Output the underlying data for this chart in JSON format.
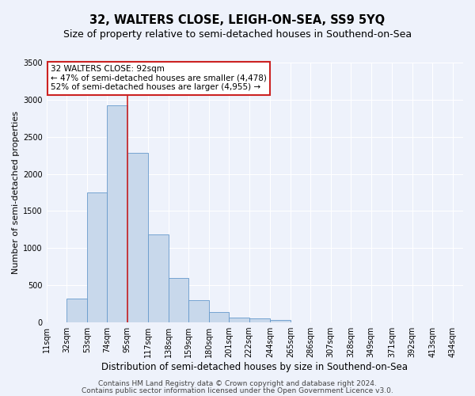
{
  "title": "32, WALTERS CLOSE, LEIGH-ON-SEA, SS9 5YQ",
  "subtitle": "Size of property relative to semi-detached houses in Southend-on-Sea",
  "xlabel": "Distribution of semi-detached houses by size in Southend-on-Sea",
  "ylabel": "Number of semi-detached properties",
  "bar_left_edges": [
    11,
    32,
    53,
    74,
    95,
    117,
    138,
    159,
    180,
    201,
    222,
    244,
    265,
    286,
    307,
    328,
    349,
    371,
    392,
    413
  ],
  "bar_widths": [
    21,
    21,
    21,
    21,
    22,
    21,
    21,
    21,
    21,
    21,
    22,
    21,
    21,
    21,
    21,
    21,
    22,
    21,
    21,
    21
  ],
  "bar_heights": [
    0,
    320,
    1750,
    2920,
    2280,
    1180,
    600,
    300,
    140,
    70,
    55,
    35,
    0,
    0,
    0,
    0,
    0,
    0,
    0,
    0
  ],
  "bar_color": "#c8d8eb",
  "bar_edge_color": "#6699cc",
  "tick_labels": [
    "11sqm",
    "32sqm",
    "53sqm",
    "74sqm",
    "95sqm",
    "117sqm",
    "138sqm",
    "159sqm",
    "180sqm",
    "201sqm",
    "222sqm",
    "244sqm",
    "265sqm",
    "286sqm",
    "307sqm",
    "328sqm",
    "349sqm",
    "371sqm",
    "392sqm",
    "413sqm",
    "434sqm"
  ],
  "tick_positions": [
    11,
    32,
    53,
    74,
    95,
    117,
    138,
    159,
    180,
    201,
    222,
    244,
    265,
    286,
    307,
    328,
    349,
    371,
    392,
    413,
    434
  ],
  "vline_x": 95,
  "vline_color": "#cc2222",
  "annotation_title": "32 WALTERS CLOSE: 92sqm",
  "annotation_line1": "← 47% of semi-detached houses are smaller (4,478)",
  "annotation_line2": "52% of semi-detached houses are larger (4,955) →",
  "annotation_box_color": "#ffffff",
  "annotation_border_color": "#cc2222",
  "ylim": [
    0,
    3500
  ],
  "yticks": [
    0,
    500,
    1000,
    1500,
    2000,
    2500,
    3000,
    3500
  ],
  "xlim_left": 11,
  "xlim_right": 445,
  "footer1": "Contains HM Land Registry data © Crown copyright and database right 2024.",
  "footer2": "Contains public sector information licensed under the Open Government Licence v3.0.",
  "bg_color": "#eef2fb",
  "grid_color": "#ffffff",
  "title_fontsize": 10.5,
  "subtitle_fontsize": 9,
  "xlabel_fontsize": 8.5,
  "ylabel_fontsize": 8,
  "tick_fontsize": 7,
  "annot_fontsize": 7.5,
  "footer_fontsize": 6.5
}
